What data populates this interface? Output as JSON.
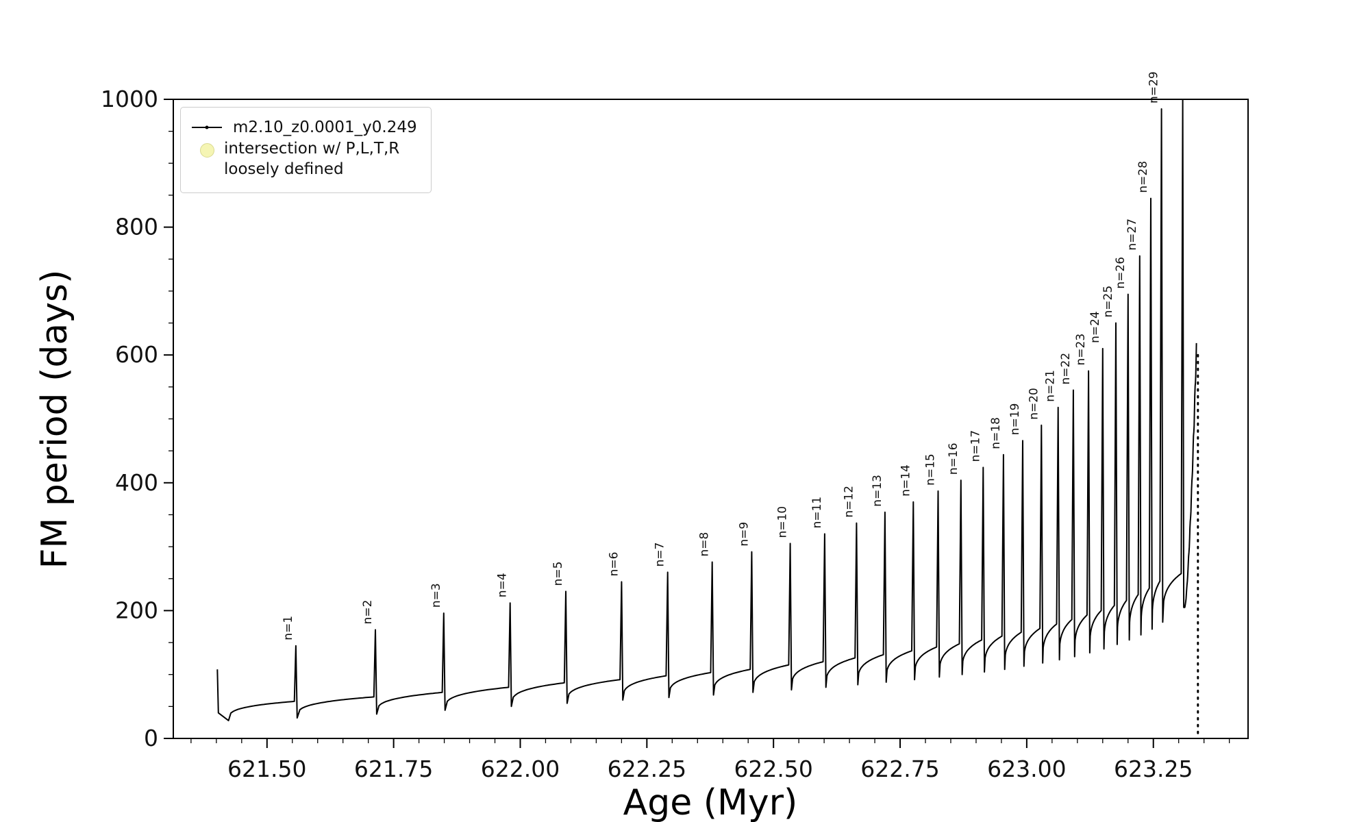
{
  "chart_data": {
    "type": "line",
    "title": "",
    "xlabel": "Age (Myr)",
    "ylabel": "FM period (days)",
    "xlim": [
      621.315,
      623.437
    ],
    "ylim": [
      0,
      1000
    ],
    "xticks": [
      621.5,
      621.75,
      622.0,
      622.25,
      622.5,
      622.75,
      623.0,
      623.25
    ],
    "xtick_labels": [
      "621.50",
      "621.75",
      "622.00",
      "622.25",
      "622.50",
      "622.75",
      "623.00",
      "623.25"
    ],
    "yticks": [
      0,
      200,
      400,
      600,
      800,
      1000
    ],
    "ytick_labels": [
      "0",
      "200",
      "400",
      "600",
      "800",
      "1000"
    ],
    "minor_xtick_step": 0.05,
    "minor_ytick_step": 50,
    "grid": false,
    "legend_position": "upper-left",
    "legend": {
      "series": "m2.10_z0.0001_y0.249",
      "intersection_line1": "intersection w/ P,L,T,R",
      "intersection_line2": "loosely defined"
    },
    "colors": {
      "line": "#000000",
      "intersection_marker_fill": "#f5f5b4",
      "intersection_marker_edge": "#d9d990",
      "frame": "#000000",
      "background": "#ffffff"
    },
    "initial": {
      "start_age": 621.402,
      "start_value": 108,
      "drop_value": 40,
      "dip_age": 621.424,
      "dip_value": 28
    },
    "pulses": [
      {
        "n": 1,
        "label": "n=1",
        "age": 621.557,
        "base": 58,
        "peak": 145,
        "dip": 32
      },
      {
        "n": 2,
        "label": "n=2",
        "age": 621.714,
        "base": 65,
        "peak": 170,
        "dip": 38
      },
      {
        "n": 3,
        "label": "n=3",
        "age": 621.849,
        "base": 72,
        "peak": 196,
        "dip": 44
      },
      {
        "n": 4,
        "label": "n=4",
        "age": 621.98,
        "base": 80,
        "peak": 212,
        "dip": 50
      },
      {
        "n": 5,
        "label": "n=5",
        "age": 622.09,
        "base": 87,
        "peak": 230,
        "dip": 55
      },
      {
        "n": 6,
        "label": "n=6",
        "age": 622.2,
        "base": 92,
        "peak": 245,
        "dip": 60
      },
      {
        "n": 7,
        "label": "n=7",
        "age": 622.291,
        "base": 98,
        "peak": 260,
        "dip": 64
      },
      {
        "n": 8,
        "label": "n=8",
        "age": 622.379,
        "base": 103,
        "peak": 276,
        "dip": 68
      },
      {
        "n": 9,
        "label": "n=9",
        "age": 622.457,
        "base": 108,
        "peak": 292,
        "dip": 72
      },
      {
        "n": 10,
        "label": "n=10",
        "age": 622.533,
        "base": 115,
        "peak": 305,
        "dip": 76
      },
      {
        "n": 11,
        "label": "n=11",
        "age": 622.601,
        "base": 120,
        "peak": 320,
        "dip": 80
      },
      {
        "n": 12,
        "label": "n=12",
        "age": 622.664,
        "base": 126,
        "peak": 337,
        "dip": 84
      },
      {
        "n": 13,
        "label": "n=13",
        "age": 622.72,
        "base": 131,
        "peak": 354,
        "dip": 88
      },
      {
        "n": 14,
        "label": "n=14",
        "age": 622.776,
        "base": 137,
        "peak": 370,
        "dip": 92
      },
      {
        "n": 15,
        "label": "n=15",
        "age": 622.825,
        "base": 143,
        "peak": 387,
        "dip": 96
      },
      {
        "n": 16,
        "label": "n=16",
        "age": 622.87,
        "base": 148,
        "peak": 404,
        "dip": 100
      },
      {
        "n": 17,
        "label": "n=17",
        "age": 622.914,
        "base": 154,
        "peak": 424,
        "dip": 104
      },
      {
        "n": 18,
        "label": "n=18",
        "age": 622.954,
        "base": 160,
        "peak": 444,
        "dip": 108
      },
      {
        "n": 19,
        "label": "n=19",
        "age": 622.992,
        "base": 166,
        "peak": 466,
        "dip": 113
      },
      {
        "n": 20,
        "label": "n=20",
        "age": 623.029,
        "base": 172,
        "peak": 490,
        "dip": 118
      },
      {
        "n": 21,
        "label": "n=21",
        "age": 623.062,
        "base": 179,
        "peak": 518,
        "dip": 123
      },
      {
        "n": 22,
        "label": "n=22",
        "age": 623.092,
        "base": 186,
        "peak": 545,
        "dip": 128
      },
      {
        "n": 23,
        "label": "n=23",
        "age": 623.122,
        "base": 193,
        "peak": 575,
        "dip": 134
      },
      {
        "n": 24,
        "label": "n=24",
        "age": 623.15,
        "base": 200,
        "peak": 610,
        "dip": 140
      },
      {
        "n": 25,
        "label": "n=25",
        "age": 623.176,
        "base": 208,
        "peak": 650,
        "dip": 147
      },
      {
        "n": 26,
        "label": "n=26",
        "age": 623.2,
        "base": 216,
        "peak": 695,
        "dip": 154
      },
      {
        "n": 27,
        "label": "n=27",
        "age": 623.223,
        "base": 225,
        "peak": 755,
        "dip": 162
      },
      {
        "n": 28,
        "label": "n=28",
        "age": 623.245,
        "base": 235,
        "peak": 845,
        "dip": 171
      },
      {
        "n": 29,
        "label": "n=29",
        "age": 623.266,
        "base": 246,
        "peak": 985,
        "dip": 182
      }
    ],
    "final": {
      "pre_spike_base": 258,
      "spike_age": 623.308,
      "spike_peak": 1000,
      "post_dip": 205,
      "rise_end_age": 623.335,
      "rise_end_value": 610,
      "drop_age": 623.338,
      "drop_top": 600,
      "drop_bottom": 8
    }
  }
}
